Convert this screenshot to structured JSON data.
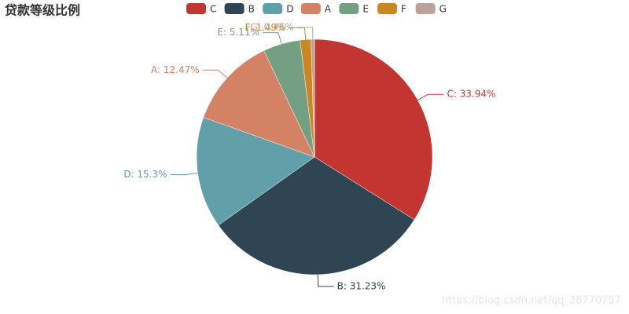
{
  "chart_data": {
    "type": "pie",
    "title": "贷款等级比例",
    "categories": [
      "C",
      "B",
      "D",
      "A",
      "E",
      "F",
      "G"
    ],
    "values": [
      33.94,
      31.23,
      15.3,
      12.47,
      5.11,
      1.49,
      0.46
    ],
    "value_labels": [
      "C: 33.94%",
      "B: 31.23%",
      "D: 15.3%",
      "A: 12.47%",
      "E: 5.11%",
      "F: 1.49%",
      "G: 0.46%"
    ],
    "colors": [
      "#c23531",
      "#2f4554",
      "#61a0a8",
      "#d48265",
      "#749f83",
      "#ca8622",
      "#bda29a"
    ],
    "legend": "top",
    "watermark": "https://blog.csdn.net/qq_28770757"
  }
}
